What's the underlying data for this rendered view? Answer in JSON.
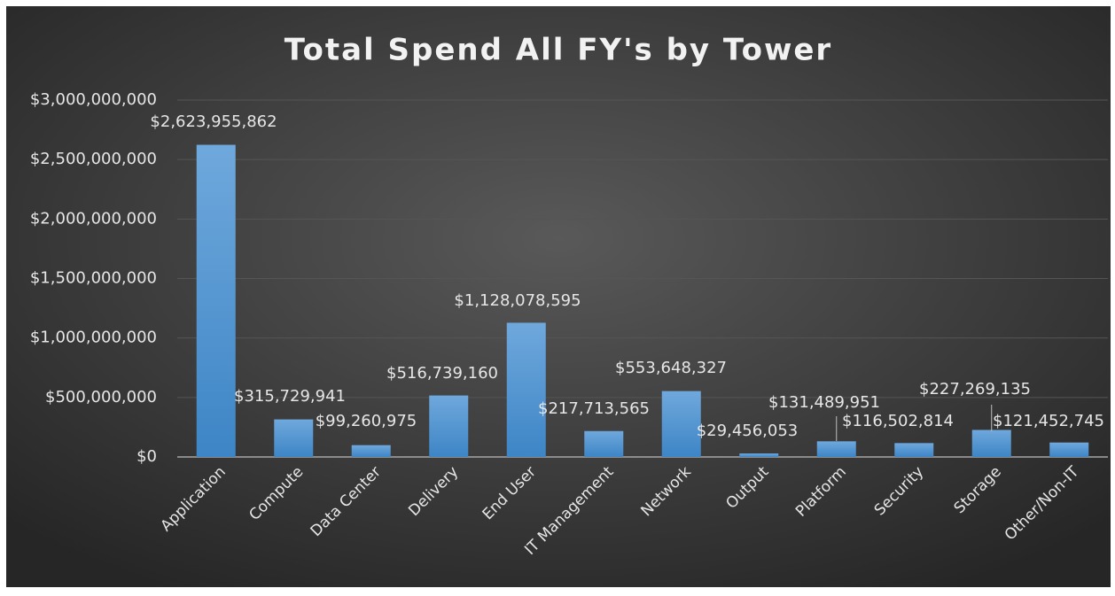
{
  "chart_data": {
    "type": "bar",
    "title": "Total Spend All FY's by Tower",
    "categories": [
      "Application",
      "Compute",
      "Data Center",
      "Delivery",
      "End User",
      "IT Management",
      "Network",
      "Output",
      "Platform",
      "Security",
      "Storage",
      "Other/Non-IT"
    ],
    "values": [
      2623955862,
      315729941,
      99260975,
      516739160,
      1128078595,
      217713565,
      553648327,
      29456053,
      131489951,
      116502814,
      227269135,
      121452745
    ],
    "value_labels": [
      "$2,623,955,862",
      "$315,729,941",
      "$99,260,975",
      "$516,739,160",
      "$1,128,078,595",
      "$217,713,565",
      "$553,648,327",
      "$29,456,053",
      "$131,489,951",
      "$116,502,814",
      "$227,269,135",
      "$121,452,745"
    ],
    "color": "#5b9bd5",
    "ylim": [
      0,
      3000000000
    ],
    "yticks": [
      {
        "value": 0,
        "label": "$0"
      },
      {
        "value": 500000000,
        "label": "$500,000,000"
      },
      {
        "value": 1000000000,
        "label": "$1,000,000,000"
      },
      {
        "value": 1500000000,
        "label": "$1,500,000,000"
      },
      {
        "value": 2000000000,
        "label": "$2,000,000,000"
      },
      {
        "value": 2500000000,
        "label": "$2,500,000,000"
      },
      {
        "value": 3000000000,
        "label": "$3,000,000,000"
      }
    ],
    "grid": true
  }
}
